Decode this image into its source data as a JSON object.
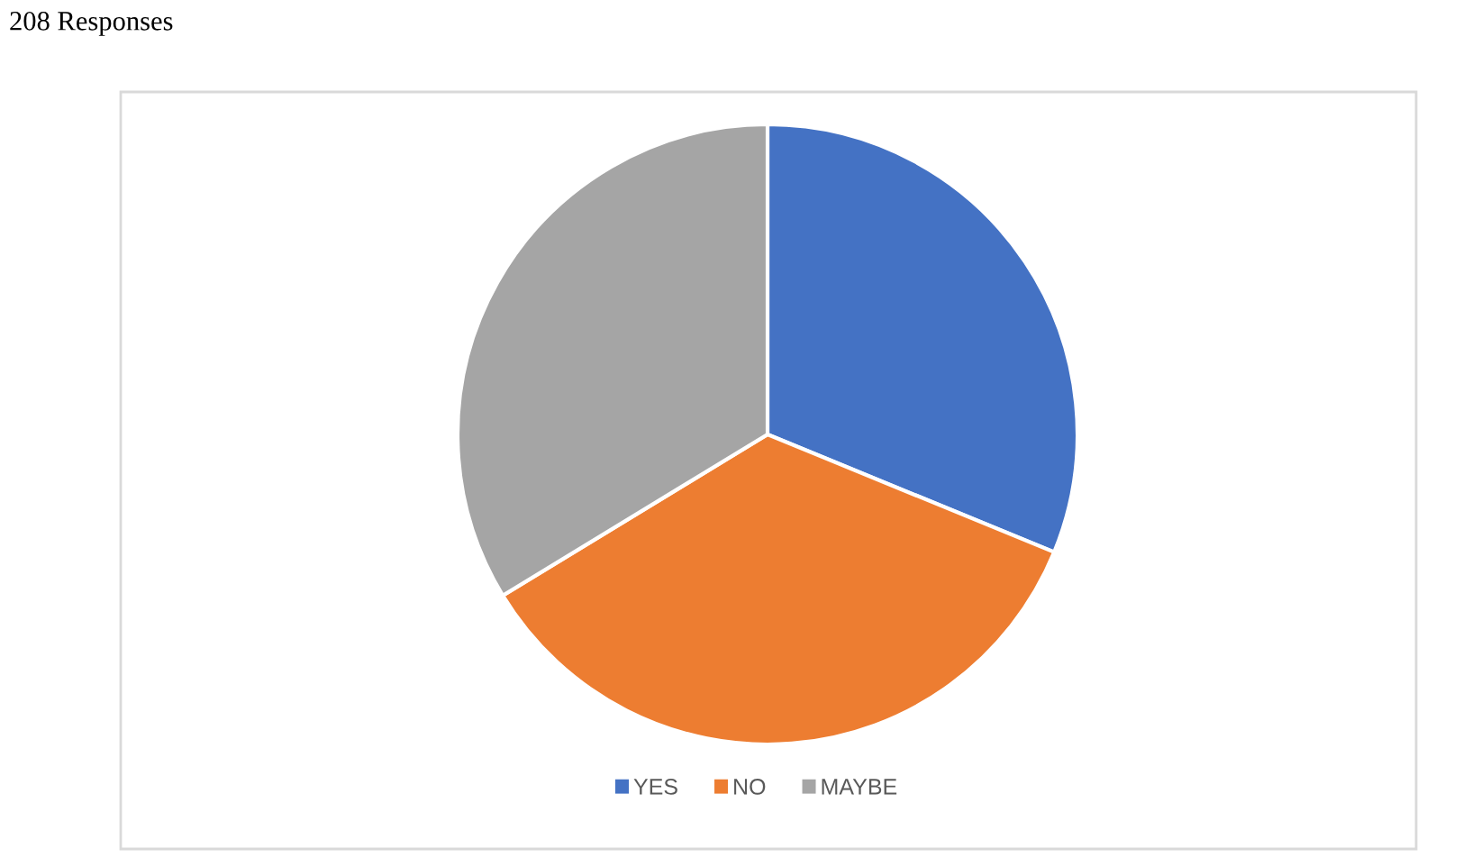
{
  "chart_data": {
    "type": "pie",
    "title": "208 Responses",
    "categories": [
      "YES",
      "NO",
      "MAYBE"
    ],
    "values": [
      31.2,
      35.1,
      33.7
    ],
    "colors": [
      "#4472c4",
      "#ed7d31",
      "#a5a5a5"
    ],
    "legend": "bottom"
  }
}
